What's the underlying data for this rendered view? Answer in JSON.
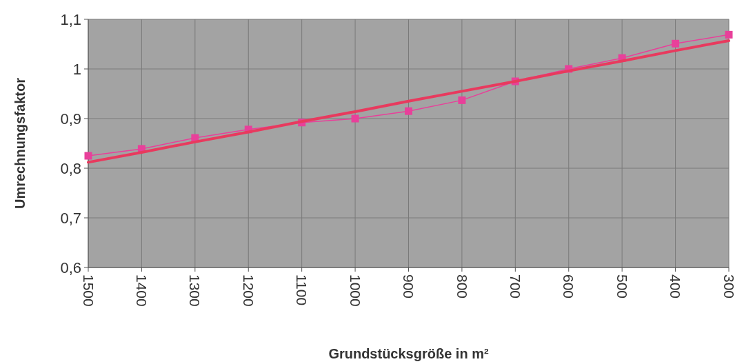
{
  "chart_data": {
    "type": "line",
    "xlabel": "Grundstücksgröße in m²",
    "ylabel": "Umrechnungsfaktor",
    "categories": [
      "1500",
      "1400",
      "1300",
      "1200",
      "1100",
      "1000",
      "900",
      "800",
      "700",
      "600",
      "500",
      "400",
      "300"
    ],
    "ylim": [
      0.6,
      1.1
    ],
    "yticks": [
      {
        "value": 0.6,
        "label": "0,6"
      },
      {
        "value": 0.7,
        "label": "0,7"
      },
      {
        "value": 0.8,
        "label": "0,8"
      },
      {
        "value": 0.9,
        "label": "0,9"
      },
      {
        "value": 1,
        "label": "1"
      },
      {
        "value": 1.1,
        "label": "1,1"
      }
    ],
    "grid": true,
    "series": [
      {
        "color": "#e8409a",
        "marker": "square",
        "values": [
          0.825,
          0.839,
          0.861,
          0.878,
          0.892,
          0.9,
          0.915,
          0.937,
          0.975,
          1.0,
          1.022,
          1.051,
          1.069
        ]
      },
      {
        "color": "#e83a5e",
        "marker": "none",
        "values": [
          0.812,
          0.832,
          0.853,
          0.873,
          0.894,
          0.914,
          0.935,
          0.955,
          0.975,
          0.996,
          1.016,
          1.037,
          1.057
        ]
      }
    ]
  }
}
